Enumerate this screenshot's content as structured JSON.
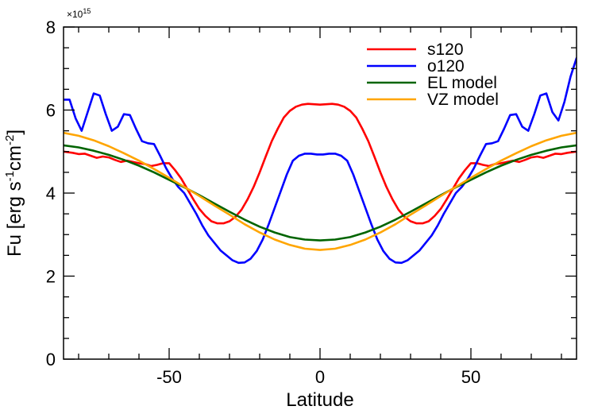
{
  "chart_data": {
    "type": "line",
    "xlabel": "Latitude",
    "ylabel_main": "Fu [erg s",
    "ylabel_exp1": "-1",
    "ylabel_mid": "cm",
    "ylabel_exp2": "-2",
    "ylabel_end": "]",
    "y_multiplier_prefix": "×10",
    "y_multiplier_exp": "15",
    "xlim": [
      -85,
      85
    ],
    "ylim": [
      0,
      8
    ],
    "xticks": [
      -50,
      0,
      50
    ],
    "yticks": [
      0,
      2,
      4,
      6,
      8
    ],
    "xtick_labels": [
      "-50",
      "0",
      "50"
    ],
    "ytick_labels": [
      "0",
      "2",
      "4",
      "6",
      "8"
    ],
    "grid": false,
    "legend_position": "top-right",
    "series": [
      {
        "name": "s120",
        "color": "#ff0000",
        "x": [
          -85,
          -82,
          -80,
          -78,
          -76,
          -74,
          -72,
          -70,
          -68,
          -66,
          -64,
          -62,
          -60,
          -58,
          -56,
          -54,
          -52,
          -50,
          -48,
          -46,
          -44,
          -42,
          -40,
          -38,
          -36,
          -34,
          -32,
          -30,
          -28,
          -26,
          -24,
          -22,
          -20,
          -18,
          -16,
          -14,
          -12,
          -10,
          -8,
          -6,
          -4,
          -2,
          0,
          2,
          4,
          6,
          8,
          10,
          12,
          14,
          16,
          18,
          20,
          22,
          24,
          26,
          28,
          30,
          32,
          34,
          36,
          38,
          40,
          42,
          44,
          46,
          48,
          50,
          52,
          54,
          56,
          58,
          60,
          62,
          64,
          66,
          68,
          70,
          72,
          74,
          76,
          78,
          80,
          82,
          85
        ],
        "y": [
          5.0,
          4.97,
          4.94,
          4.95,
          4.9,
          4.85,
          4.88,
          4.86,
          4.8,
          4.75,
          4.78,
          4.75,
          4.72,
          4.7,
          4.65,
          4.68,
          4.72,
          4.72,
          4.55,
          4.35,
          4.1,
          3.85,
          3.62,
          3.45,
          3.32,
          3.27,
          3.27,
          3.32,
          3.43,
          3.6,
          3.85,
          4.15,
          4.5,
          4.88,
          5.25,
          5.55,
          5.82,
          5.98,
          6.08,
          6.13,
          6.15,
          6.14,
          6.13,
          6.14,
          6.15,
          6.13,
          6.08,
          5.98,
          5.82,
          5.55,
          5.25,
          4.88,
          4.5,
          4.15,
          3.85,
          3.6,
          3.43,
          3.32,
          3.27,
          3.27,
          3.32,
          3.45,
          3.62,
          3.85,
          4.1,
          4.35,
          4.55,
          4.72,
          4.72,
          4.68,
          4.65,
          4.7,
          4.72,
          4.75,
          4.78,
          4.75,
          4.8,
          4.86,
          4.88,
          4.85,
          4.9,
          4.95,
          4.94,
          4.97,
          5.0
        ]
      },
      {
        "name": "o120",
        "color": "#0000ff",
        "x": [
          -85,
          -83,
          -81,
          -79,
          -77,
          -75,
          -73,
          -71,
          -69,
          -67,
          -65,
          -63,
          -61,
          -59,
          -57,
          -55,
          -53,
          -51,
          -49,
          -47,
          -45,
          -43,
          -41,
          -39,
          -37,
          -35,
          -33,
          -31,
          -29,
          -27,
          -25,
          -23,
          -21,
          -19,
          -17,
          -15,
          -13,
          -11,
          -9,
          -7,
          -5,
          -3,
          -1,
          1,
          3,
          5,
          7,
          9,
          11,
          13,
          15,
          17,
          19,
          21,
          23,
          25,
          27,
          29,
          31,
          33,
          35,
          37,
          39,
          41,
          43,
          45,
          47,
          49,
          51,
          53,
          55,
          57,
          59,
          61,
          63,
          65,
          67,
          69,
          71,
          73,
          75,
          77,
          79,
          81,
          83,
          85
        ],
        "y": [
          6.25,
          6.25,
          5.8,
          5.5,
          5.95,
          6.4,
          6.35,
          5.9,
          5.5,
          5.6,
          5.9,
          5.88,
          5.55,
          5.25,
          5.2,
          5.18,
          4.9,
          4.6,
          4.35,
          4.15,
          4.0,
          3.75,
          3.5,
          3.22,
          2.98,
          2.8,
          2.62,
          2.5,
          2.38,
          2.32,
          2.33,
          2.42,
          2.6,
          2.88,
          3.25,
          3.65,
          4.05,
          4.45,
          4.78,
          4.9,
          4.95,
          4.95,
          4.93,
          4.93,
          4.95,
          4.95,
          4.9,
          4.78,
          4.45,
          4.05,
          3.65,
          3.25,
          2.88,
          2.6,
          2.42,
          2.33,
          2.32,
          2.38,
          2.5,
          2.62,
          2.8,
          2.98,
          3.22,
          3.5,
          3.75,
          4.0,
          4.15,
          4.35,
          4.6,
          4.9,
          5.18,
          5.2,
          5.25,
          5.55,
          5.88,
          5.9,
          5.6,
          5.5,
          5.9,
          6.35,
          6.4,
          5.95,
          5.75,
          6.2,
          6.8,
          7.25
        ]
      },
      {
        "name": "EL model",
        "color": "#006400",
        "x": [
          -85,
          -80,
          -75,
          -70,
          -65,
          -60,
          -55,
          -50,
          -45,
          -40,
          -35,
          -30,
          -25,
          -20,
          -15,
          -10,
          -5,
          0,
          5,
          10,
          15,
          20,
          25,
          30,
          35,
          40,
          45,
          50,
          55,
          60,
          65,
          70,
          75,
          80,
          85
        ],
        "y": [
          5.15,
          5.1,
          5.02,
          4.92,
          4.8,
          4.66,
          4.5,
          4.32,
          4.14,
          3.95,
          3.75,
          3.55,
          3.36,
          3.19,
          3.05,
          2.94,
          2.88,
          2.86,
          2.88,
          2.94,
          3.05,
          3.19,
          3.36,
          3.55,
          3.75,
          3.95,
          4.14,
          4.32,
          4.5,
          4.66,
          4.8,
          4.92,
          5.02,
          5.1,
          5.15
        ]
      },
      {
        "name": "VZ model",
        "color": "#ffa500",
        "x": [
          -85,
          -80,
          -75,
          -70,
          -65,
          -60,
          -55,
          -50,
          -45,
          -40,
          -35,
          -30,
          -25,
          -20,
          -15,
          -10,
          -5,
          0,
          5,
          10,
          15,
          20,
          25,
          30,
          35,
          40,
          45,
          50,
          55,
          60,
          65,
          70,
          75,
          80,
          85
        ],
        "y": [
          5.45,
          5.38,
          5.27,
          5.13,
          4.96,
          4.78,
          4.58,
          4.37,
          4.15,
          3.93,
          3.7,
          3.48,
          3.25,
          3.05,
          2.88,
          2.75,
          2.66,
          2.63,
          2.66,
          2.75,
          2.88,
          3.05,
          3.25,
          3.48,
          3.7,
          3.93,
          4.15,
          4.37,
          4.58,
          4.78,
          4.96,
          5.13,
          5.27,
          5.38,
          5.45
        ]
      }
    ]
  }
}
